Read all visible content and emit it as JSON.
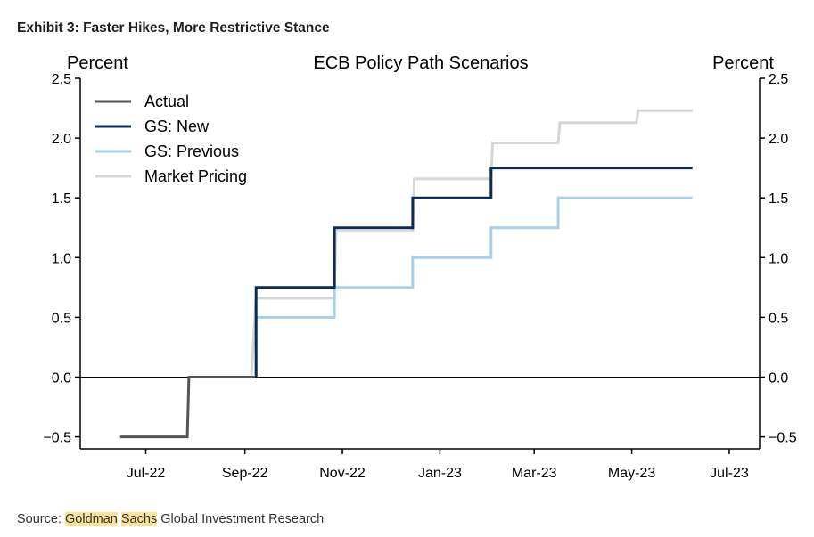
{
  "exhibit_title": "Exhibit 3: Faster Hikes, More Restrictive Stance",
  "source": {
    "prefix": "Source: ",
    "highlight_1": "Goldman",
    "space": " ",
    "highlight_2": "Sachs",
    "suffix": " Global Investment Research"
  },
  "chart_data": {
    "type": "line",
    "title": "ECB Policy Path Scenarios",
    "ylabel_left": "Percent",
    "ylabel_right": "Percent",
    "ylim": [
      -0.6,
      2.5
    ],
    "yticks": [
      -0.5,
      0.0,
      0.5,
      1.0,
      1.5,
      2.0,
      2.5
    ],
    "ytick_labels": [
      "−0.5",
      "0.0",
      "0.5",
      "1.0",
      "1.5",
      "2.0",
      "2.5"
    ],
    "xlim": [
      "2022-05-21",
      "2023-07-20"
    ],
    "xticks": [
      "2022-07-01",
      "2022-09-01",
      "2022-11-01",
      "2023-01-01",
      "2023-03-01",
      "2023-05-01",
      "2023-07-01"
    ],
    "xtick_labels": [
      "Jul-22",
      "Sep-22",
      "Nov-22",
      "Jan-23",
      "Mar-23",
      "May-23",
      "Jul-23"
    ],
    "zero_line": true,
    "grid": false,
    "legend_position": "top-left",
    "series": [
      {
        "name": "Actual",
        "color": "#555555",
        "points": [
          [
            "2022-06-15",
            -0.5
          ],
          [
            "2022-07-27",
            -0.5
          ],
          [
            "2022-07-28",
            0.0
          ],
          [
            "2022-09-07",
            0.0
          ]
        ]
      },
      {
        "name": "GS: New",
        "color": "#0b2d55",
        "points": [
          [
            "2022-09-08",
            0.0
          ],
          [
            "2022-09-08",
            0.75
          ],
          [
            "2022-10-27",
            0.75
          ],
          [
            "2022-10-27",
            1.25
          ],
          [
            "2022-12-15",
            1.25
          ],
          [
            "2022-12-15",
            1.5
          ],
          [
            "2023-02-02",
            1.5
          ],
          [
            "2023-02-02",
            1.75
          ],
          [
            "2023-06-08",
            1.75
          ]
        ]
      },
      {
        "name": "GS: Previous",
        "color": "#a8d0ea",
        "points": [
          [
            "2022-09-08",
            0.0
          ],
          [
            "2022-09-08",
            0.5
          ],
          [
            "2022-10-27",
            0.5
          ],
          [
            "2022-10-27",
            0.75
          ],
          [
            "2022-12-15",
            0.75
          ],
          [
            "2022-12-15",
            1.0
          ],
          [
            "2023-02-02",
            1.0
          ],
          [
            "2023-02-02",
            1.25
          ],
          [
            "2023-03-16",
            1.25
          ],
          [
            "2023-03-16",
            1.5
          ],
          [
            "2023-06-08",
            1.5
          ]
        ]
      },
      {
        "name": "Market Pricing",
        "color": "#d6d6d6",
        "points": [
          [
            "2022-09-05",
            0.0
          ],
          [
            "2022-09-08",
            0.66
          ],
          [
            "2022-10-27",
            0.66
          ],
          [
            "2022-10-28",
            1.22
          ],
          [
            "2022-12-15",
            1.22
          ],
          [
            "2022-12-16",
            1.66
          ],
          [
            "2023-02-02",
            1.66
          ],
          [
            "2023-02-03",
            1.96
          ],
          [
            "2023-03-16",
            1.96
          ],
          [
            "2023-03-17",
            2.13
          ],
          [
            "2023-05-04",
            2.13
          ],
          [
            "2023-05-05",
            2.23
          ],
          [
            "2023-06-08",
            2.23
          ]
        ]
      }
    ]
  }
}
